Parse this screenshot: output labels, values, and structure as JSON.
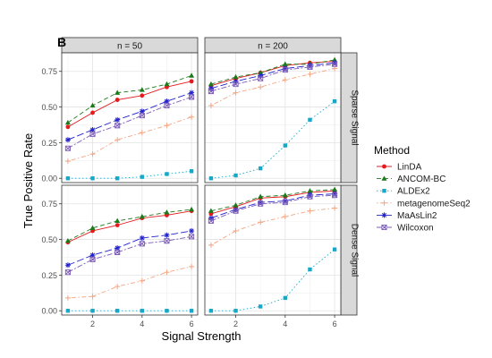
{
  "figure": {
    "panel_label": "B",
    "xlabel": "Signal Strength",
    "ylabel": "True Positive Rate",
    "legend_title": "Method"
  },
  "methods": [
    {
      "name": "LinDA",
      "color": "#e41a1c",
      "dash": "solid",
      "marker": "circle"
    },
    {
      "name": "ANCOM-BC",
      "color": "#1b7a1b",
      "dash": "dashed",
      "marker": "triangle"
    },
    {
      "name": "ALDEx2",
      "color": "#17a8c8",
      "dash": "dotted",
      "marker": "square"
    },
    {
      "name": "metagenomeSeq2",
      "color": "#f4a582",
      "dash": "dotdash",
      "marker": "plus"
    },
    {
      "name": "MaAsLin2",
      "color": "#2222cc",
      "dash": "longdash",
      "marker": "star"
    },
    {
      "name": "Wilcoxon",
      "color": "#7b5cb8",
      "dash": "twodash",
      "marker": "squarecross"
    }
  ],
  "chart_data": {
    "type": "line",
    "x": [
      1,
      2,
      3,
      4,
      5,
      6
    ],
    "xlim": [
      0.75,
      6.25
    ],
    "ylim": [
      -0.03,
      0.88
    ],
    "xticks": [
      2,
      4,
      6
    ],
    "yticks": [
      0.0,
      0.25,
      0.5,
      0.75
    ],
    "ytick_labels": [
      "0.00",
      "0.25",
      "0.50",
      "0.75"
    ],
    "columns": [
      "n = 50",
      "n = 200"
    ],
    "rows": [
      "Sparse Signal",
      "Dense Signal"
    ],
    "grid": true,
    "legend_position": "right",
    "panels": [
      {
        "column": "n = 50",
        "row": "Sparse Signal",
        "series": [
          {
            "name": "LinDA",
            "values": [
              0.36,
              0.46,
              0.55,
              0.58,
              0.64,
              0.68
            ]
          },
          {
            "name": "ANCOM-BC",
            "values": [
              0.39,
              0.51,
              0.6,
              0.62,
              0.66,
              0.72
            ]
          },
          {
            "name": "ALDEx2",
            "values": [
              0.0,
              0.0,
              0.0,
              0.01,
              0.03,
              0.05
            ]
          },
          {
            "name": "metagenomeSeq2",
            "values": [
              0.12,
              0.17,
              0.27,
              0.32,
              0.37,
              0.43
            ]
          },
          {
            "name": "MaAsLin2",
            "values": [
              0.27,
              0.34,
              0.41,
              0.47,
              0.54,
              0.6
            ]
          },
          {
            "name": "Wilcoxon",
            "values": [
              0.21,
              0.31,
              0.37,
              0.44,
              0.51,
              0.57
            ]
          }
        ]
      },
      {
        "column": "n = 200",
        "row": "Sparse Signal",
        "series": [
          {
            "name": "LinDA",
            "values": [
              0.65,
              0.7,
              0.74,
              0.79,
              0.81,
              0.82
            ]
          },
          {
            "name": "ANCOM-BC",
            "values": [
              0.66,
              0.71,
              0.74,
              0.8,
              0.8,
              0.83
            ]
          },
          {
            "name": "ALDEx2",
            "values": [
              0.0,
              0.02,
              0.07,
              0.23,
              0.41,
              0.54
            ]
          },
          {
            "name": "metagenomeSeq2",
            "values": [
              0.51,
              0.6,
              0.64,
              0.69,
              0.73,
              0.77
            ]
          },
          {
            "name": "MaAsLin2",
            "values": [
              0.63,
              0.68,
              0.72,
              0.77,
              0.79,
              0.81
            ]
          },
          {
            "name": "Wilcoxon",
            "values": [
              0.61,
              0.66,
              0.7,
              0.76,
              0.78,
              0.8
            ]
          }
        ]
      },
      {
        "column": "n = 50",
        "row": "Dense Signal",
        "series": [
          {
            "name": "LinDA",
            "values": [
              0.48,
              0.56,
              0.6,
              0.65,
              0.67,
              0.7
            ]
          },
          {
            "name": "ANCOM-BC",
            "values": [
              0.49,
              0.58,
              0.63,
              0.66,
              0.69,
              0.71
            ]
          },
          {
            "name": "ALDEx2",
            "values": [
              0.0,
              0.0,
              0.0,
              0.0,
              0.0,
              0.0
            ]
          },
          {
            "name": "metagenomeSeq2",
            "values": [
              0.09,
              0.1,
              0.17,
              0.21,
              0.27,
              0.31
            ]
          },
          {
            "name": "MaAsLin2",
            "values": [
              0.32,
              0.39,
              0.44,
              0.51,
              0.53,
              0.56
            ]
          },
          {
            "name": "Wilcoxon",
            "values": [
              0.27,
              0.36,
              0.41,
              0.47,
              0.49,
              0.52
            ]
          }
        ]
      },
      {
        "column": "n = 200",
        "row": "Dense Signal",
        "series": [
          {
            "name": "LinDA",
            "values": [
              0.68,
              0.73,
              0.79,
              0.8,
              0.83,
              0.84
            ]
          },
          {
            "name": "ANCOM-BC",
            "values": [
              0.7,
              0.74,
              0.8,
              0.81,
              0.84,
              0.85
            ]
          },
          {
            "name": "ALDEx2",
            "values": [
              0.0,
              0.0,
              0.03,
              0.09,
              0.29,
              0.43
            ]
          },
          {
            "name": "metagenomeSeq2",
            "values": [
              0.46,
              0.56,
              0.62,
              0.66,
              0.7,
              0.72
            ]
          },
          {
            "name": "MaAsLin2",
            "values": [
              0.65,
              0.71,
              0.76,
              0.77,
              0.81,
              0.82
            ]
          },
          {
            "name": "Wilcoxon",
            "values": [
              0.63,
              0.7,
              0.75,
              0.76,
              0.8,
              0.81
            ]
          }
        ]
      }
    ]
  }
}
